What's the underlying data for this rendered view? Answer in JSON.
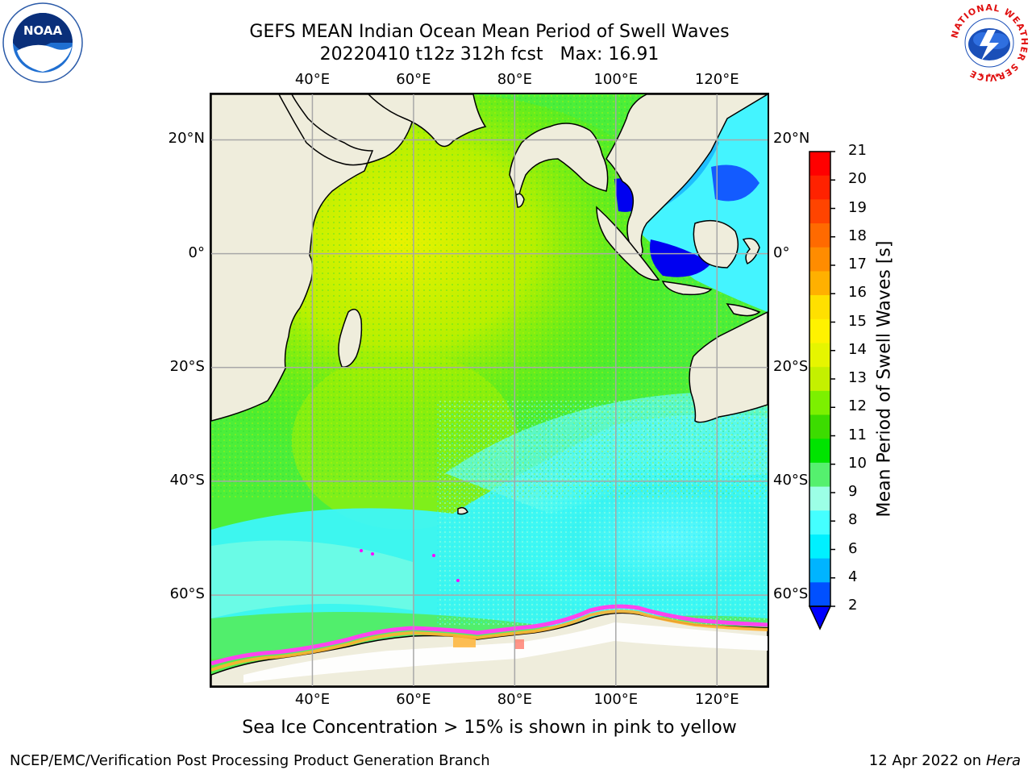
{
  "title": {
    "line1": "GEFS MEAN Indian Ocean Mean Period of Swell Waves",
    "line2": "20220410 t12z 312h fcst   Max: 16.91"
  },
  "map": {
    "lon_labels": [
      "40°E",
      "60°E",
      "80°E",
      "100°E",
      "120°E"
    ],
    "lat_labels_left": [
      "20°N",
      "0°",
      "20°S",
      "40°S",
      "60°S"
    ],
    "lat_labels_right": [
      "20°N",
      "0°",
      "20°S",
      "40°S",
      "60°S"
    ],
    "lon_range": [
      20,
      130
    ],
    "lat_range": [
      -76,
      28
    ],
    "land_color": "#efeddc",
    "grid": true
  },
  "colorbar": {
    "label": "Mean Period of Swell Waves [s]",
    "ticks": [
      "21",
      "20",
      "19",
      "18",
      "17",
      "16",
      "15",
      "14",
      "13",
      "12",
      "11",
      "10",
      "9",
      "8",
      "6",
      "4",
      "2"
    ],
    "colors": [
      "#ff0000",
      "#ff2200",
      "#ff4400",
      "#ff6a00",
      "#ff8c00",
      "#ffb000",
      "#ffe000",
      "#fff200",
      "#e6f500",
      "#c4f000",
      "#7cf000",
      "#3cdc00",
      "#00e400",
      "#55f06e",
      "#9cffe6",
      "#44ffff",
      "#00f0ff",
      "#00b4ff",
      "#0050ff"
    ],
    "extend_color": "#0000ff"
  },
  "footnote": "Sea Ice Concentration > 15% is shown in pink to yellow",
  "credit": {
    "left": "NCEP/EMC/Verification Post Processing Product Generation Branch",
    "date": "12 Apr 2022 on ",
    "machine": "Hera"
  },
  "logos": {
    "noaa_text": "NOAA",
    "nws_ring": "NATIONAL WEATHER SERVICE"
  }
}
